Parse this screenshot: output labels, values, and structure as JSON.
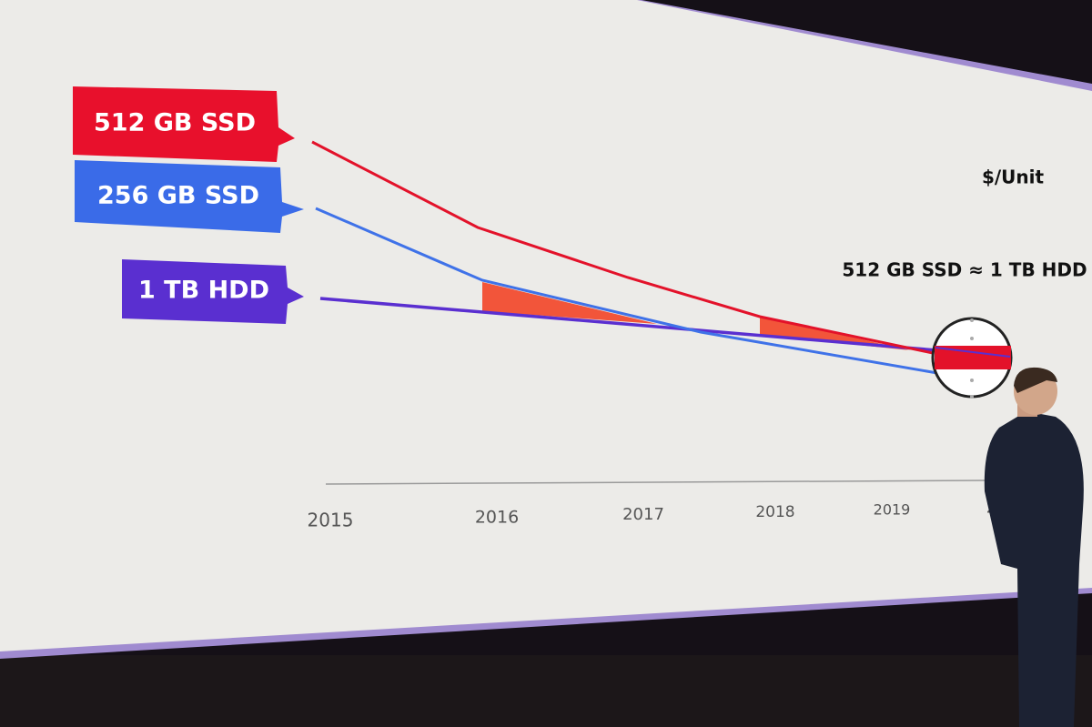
{
  "slide": {
    "labels": [
      "512 GB SSD",
      "256 GB SSD",
      "1 TB HDD"
    ],
    "unit_label": "$/Unit",
    "annotation": "512 GB SSD ≈ 1 TB HDD",
    "years": [
      "2015",
      "2016",
      "2017",
      "2018",
      "2019",
      "20"
    ]
  }
}
